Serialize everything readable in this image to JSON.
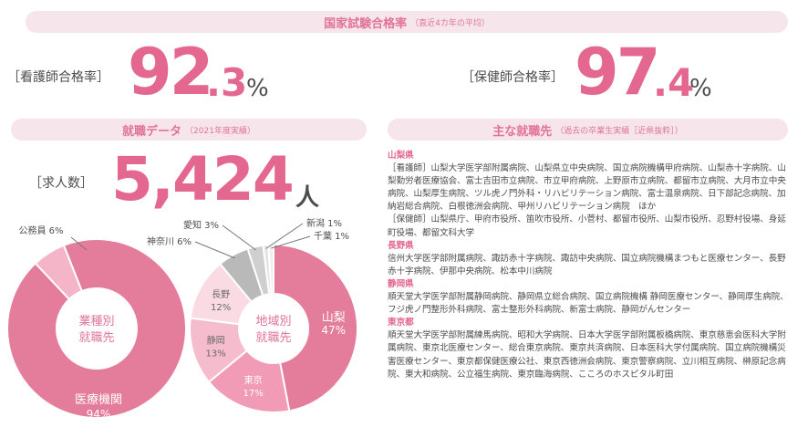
{
  "header": {
    "title": "国家試験合格率",
    "subtitle": "（直近4カ年の平均）"
  },
  "nurse": {
    "label": "［看護師合格率］",
    "int": "92",
    "dec": ".3",
    "unit": "%"
  },
  "phn": {
    "label": "［保健師合格率］",
    "int": "97",
    "dec": ".4",
    "unit": "%"
  },
  "employment": {
    "title": "就職データ",
    "subtitle": "（2021年度実績）",
    "jobs_label": "［求人数］",
    "jobs_value": "5,424",
    "jobs_unit": "人"
  },
  "destinations": {
    "title": "主な就職先",
    "subtitle": "（過去の卒業生実績［近県抜粋］）",
    "sections": [
      {
        "pref": "山梨県",
        "text": "［看護師］山梨大学医学部附属病院、山梨県立中央病院、国立病院機構甲府病院、山梨赤十字病院、山梨勤労者医療協会、富士吉田市立病院、市立甲府病院、上野原市立病院、都留市立病院、大月市立中央病院、山梨厚生病院、ツル虎ノ門外科・リハビリテーション病院、富士温泉病院、日下部記念病院、加納岩総合病院、白根徳洲会病院、甲州リハビリテーション病院　ほか"
      },
      {
        "pref": "",
        "text": "［保健師］山梨県庁、甲府市役所、笛吹市役所、小菅村、都留市役所、山梨市役所、忍野村役場、身延町役場、都留文科大学"
      },
      {
        "pref": "長野県",
        "text": "信州大学医学部附属病院、諏訪赤十字病院、諏訪中央病院、国立病院機構まつもと医療センター、長野赤十字病院、伊那中央病院、松本中川病院"
      },
      {
        "pref": "静岡県",
        "text": "順天堂大学医学部附属静岡病院、静岡県立総合病院、国立病院機構 静岡医療センター、静岡厚生病院、フジ虎ノ門整形外科病院、富士整形外科病院、新富士病院、静岡がんセンター"
      },
      {
        "pref": "東京都",
        "text": "順天堂大学医学部附属練馬病院、昭和大学病院、日本大学医学部附属板橋病院、東京慈恵会医科大学附属病院、東京北医療センター、総合東京病院、東京共済病院、日本医科大学付属病院、国立病院機構災害医療センター、東京都保健医療公社、東京西徳洲会病院、東京警察病院、立川相互病院、榊原記念病院、東大和病院、公立福生病院、東京臨海病院、こころのホスピタル町田"
      }
    ]
  },
  "chart_data": [
    {
      "type": "pie",
      "center_label": [
        "業種別",
        "就職先"
      ],
      "categories": [
        "医療機関",
        "公務員"
      ],
      "values": [
        94,
        6
      ],
      "unit": "%",
      "colors": [
        "#e47c9c",
        "#f4b5c9"
      ]
    },
    {
      "type": "pie",
      "center_label": [
        "地域別",
        "就職先"
      ],
      "categories": [
        "山梨",
        "東京",
        "静岡",
        "長野",
        "神奈川",
        "愛知",
        "新潟",
        "千葉"
      ],
      "values": [
        47,
        17,
        13,
        12,
        6,
        3,
        1,
        1
      ],
      "unit": "%",
      "colors": [
        "#e47c9c",
        "#f19bb6",
        "#f5bccd",
        "#fadbe4",
        "#b9b9b9",
        "#cfcfcf",
        "#e2e2e2",
        "#efefef"
      ]
    }
  ]
}
